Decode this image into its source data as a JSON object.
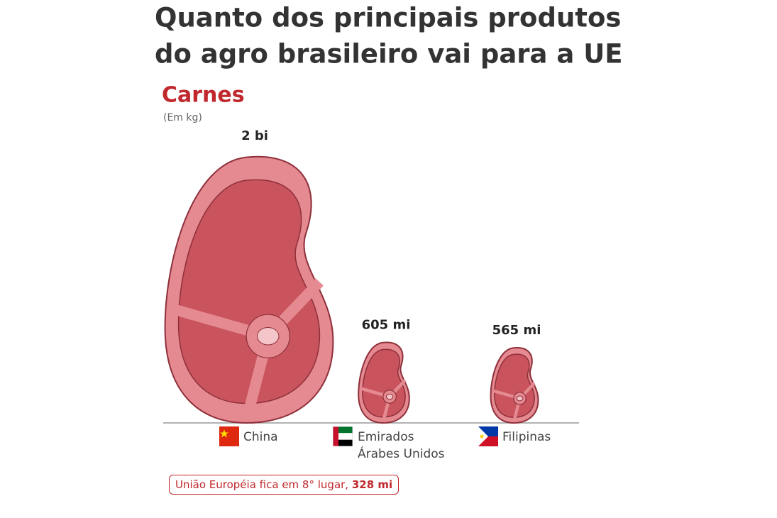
{
  "chart_data": {
    "type": "pictogram",
    "title": [
      "Quanto dos principais produtos",
      "do agro brasileiro vai para a UE"
    ],
    "subtitle": "Carnes",
    "unit_label": "(Em kg)",
    "categories": [
      "China",
      "Emirados Árabes Unidos",
      "Filipinas"
    ],
    "values": [
      2000000000,
      605000000,
      565000000
    ],
    "value_labels": [
      "2 bi",
      "605 mi",
      "565 mi"
    ],
    "color": "#e58a91",
    "annotation": "União Européia fica em 8° lugar,",
    "annotation_value": 328000000,
    "annotation_value_label": "328 mi"
  }
}
